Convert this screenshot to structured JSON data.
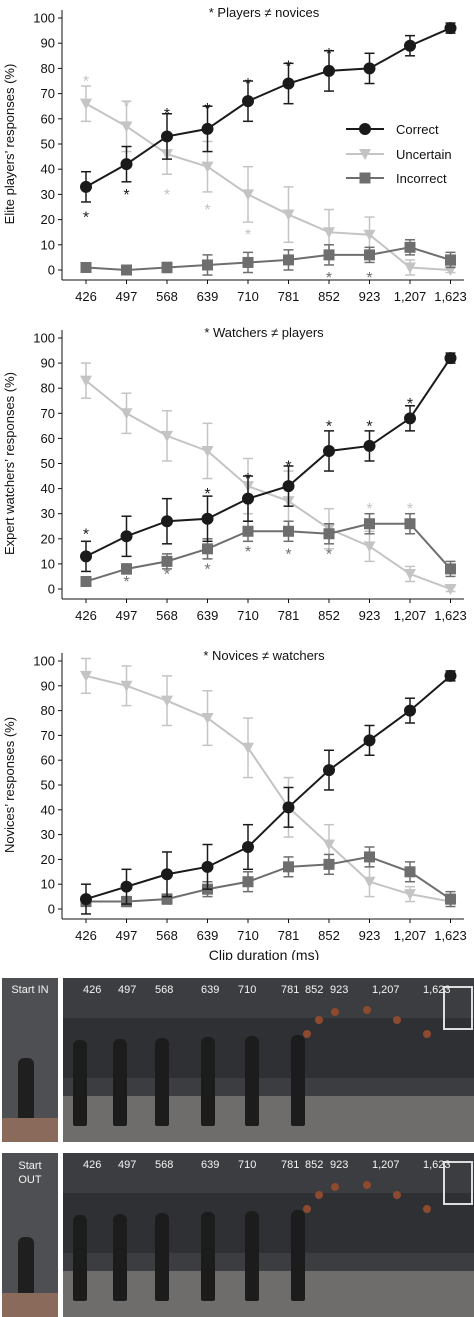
{
  "chart_data": [
    {
      "type": "line",
      "title": "* Players ≠ novices",
      "ylabel": "Elite players’ responses (%)",
      "xlabel": "",
      "categories": [
        "426",
        "497",
        "568",
        "639",
        "710",
        "781",
        "852",
        "923",
        "1,207",
        "1,623"
      ],
      "ylim": [
        0,
        100
      ],
      "yticks": [
        0,
        10,
        20,
        30,
        40,
        50,
        60,
        70,
        80,
        90,
        100
      ],
      "legend": {
        "position": "right",
        "entries": [
          "Correct",
          "Uncertain",
          "Incorrect"
        ]
      },
      "series": [
        {
          "name": "Correct",
          "color": "#1a1a1a",
          "marker": "circle",
          "values": [
            33,
            42,
            53,
            56,
            67,
            74,
            79,
            80,
            89,
            96
          ],
          "err": [
            6,
            7,
            9,
            9,
            8,
            8,
            8,
            6,
            4,
            2
          ]
        },
        {
          "name": "Uncertain",
          "color": "#c4c4c4",
          "marker": "triangle-down",
          "values": [
            66,
            57,
            46,
            41,
            30,
            22,
            15,
            14,
            1,
            0
          ],
          "err": [
            7,
            10,
            8,
            10,
            11,
            11,
            9,
            7,
            3,
            1
          ]
        },
        {
          "name": "Incorrect",
          "color": "#6e6e6e",
          "marker": "square",
          "values": [
            1,
            0,
            1,
            2,
            3,
            4,
            6,
            6,
            9,
            4
          ],
          "err": [
            1,
            1,
            2,
            4,
            4,
            4,
            4,
            3,
            3,
            3
          ]
        }
      ],
      "stars": [
        {
          "x": "426",
          "y": 22,
          "color": "#1a1a1a"
        },
        {
          "x": "497",
          "y": 31,
          "color": "#1a1a1a"
        },
        {
          "x": "568",
          "y": 63,
          "color": "#1a1a1a"
        },
        {
          "x": "639",
          "y": 65,
          "color": "#1a1a1a"
        },
        {
          "x": "710",
          "y": 75,
          "color": "#1a1a1a"
        },
        {
          "x": "781",
          "y": 82,
          "color": "#1a1a1a"
        },
        {
          "x": "852",
          "y": 87,
          "color": "#1a1a1a"
        },
        {
          "x": "426",
          "y": 76,
          "color": "#c4c4c4"
        },
        {
          "x": "497",
          "y": 66,
          "color": "#c4c4c4"
        },
        {
          "x": "568",
          "y": 31,
          "color": "#c4c4c4"
        },
        {
          "x": "639",
          "y": 25,
          "color": "#c4c4c4"
        },
        {
          "x": "710",
          "y": 15,
          "color": "#c4c4c4"
        },
        {
          "x": "852",
          "y": -2,
          "color": "#6e6e6e"
        },
        {
          "x": "923",
          "y": -2,
          "color": "#6e6e6e"
        }
      ]
    },
    {
      "type": "line",
      "title": "* Watchers ≠ players",
      "ylabel": "Expert watchers’ responses (%)",
      "xlabel": "",
      "categories": [
        "426",
        "497",
        "568",
        "639",
        "710",
        "781",
        "852",
        "923",
        "1,207",
        "1,623"
      ],
      "ylim": [
        0,
        100
      ],
      "yticks": [
        0,
        10,
        20,
        30,
        40,
        50,
        60,
        70,
        80,
        90,
        100
      ],
      "series": [
        {
          "name": "Correct",
          "color": "#1a1a1a",
          "marker": "circle",
          "values": [
            13,
            21,
            27,
            28,
            36,
            41,
            55,
            57,
            68,
            92
          ],
          "err": [
            6,
            8,
            9,
            9,
            9,
            8,
            8,
            6,
            5,
            2
          ]
        },
        {
          "name": "Uncertain",
          "color": "#c4c4c4",
          "marker": "triangle-down",
          "values": [
            83,
            70,
            61,
            55,
            41,
            35,
            24,
            17,
            6,
            0
          ],
          "err": [
            7,
            8,
            10,
            11,
            11,
            12,
            8,
            6,
            3,
            1
          ]
        },
        {
          "name": "Incorrect",
          "color": "#6e6e6e",
          "marker": "square",
          "values": [
            3,
            8,
            11,
            16,
            23,
            23,
            22,
            26,
            26,
            8
          ],
          "err": [
            1,
            2,
            3,
            4,
            4,
            4,
            4,
            4,
            4,
            3
          ]
        }
      ],
      "stars": [
        {
          "x": "426",
          "y": 23,
          "color": "#1a1a1a"
        },
        {
          "x": "639",
          "y": 39,
          "color": "#1a1a1a"
        },
        {
          "x": "710",
          "y": 45,
          "color": "#1a1a1a"
        },
        {
          "x": "781",
          "y": 50,
          "color": "#1a1a1a"
        },
        {
          "x": "852",
          "y": 66,
          "color": "#1a1a1a"
        },
        {
          "x": "923",
          "y": 66,
          "color": "#1a1a1a"
        },
        {
          "x": "1,207",
          "y": 75,
          "color": "#1a1a1a"
        },
        {
          "x": "923",
          "y": 33,
          "color": "#c4c4c4"
        },
        {
          "x": "1,207",
          "y": 33,
          "color": "#c4c4c4"
        },
        {
          "x": "497",
          "y": 4,
          "color": "#6e6e6e"
        },
        {
          "x": "568",
          "y": 7,
          "color": "#6e6e6e"
        },
        {
          "x": "639",
          "y": 9,
          "color": "#6e6e6e"
        },
        {
          "x": "710",
          "y": 16,
          "color": "#6e6e6e"
        },
        {
          "x": "781",
          "y": 15,
          "color": "#6e6e6e"
        },
        {
          "x": "852",
          "y": 15,
          "color": "#6e6e6e"
        }
      ]
    },
    {
      "type": "line",
      "title": "* Novices ≠ watchers",
      "ylabel": "Novices’ responses (%)",
      "xlabel": "Clip duration (ms)",
      "categories": [
        "426",
        "497",
        "568",
        "639",
        "710",
        "781",
        "852",
        "923",
        "1,207",
        "1,623"
      ],
      "ylim": [
        0,
        100
      ],
      "yticks": [
        0,
        10,
        20,
        30,
        40,
        50,
        60,
        70,
        80,
        90,
        100
      ],
      "series": [
        {
          "name": "Correct",
          "color": "#1a1a1a",
          "marker": "circle",
          "values": [
            4,
            9,
            14,
            17,
            25,
            41,
            56,
            68,
            80,
            94
          ],
          "err": [
            6,
            7,
            9,
            9,
            9,
            8,
            8,
            6,
            5,
            2
          ]
        },
        {
          "name": "Uncertain",
          "color": "#c4c4c4",
          "marker": "triangle-down",
          "values": [
            94,
            90,
            84,
            77,
            65,
            41,
            26,
            11,
            6,
            3
          ],
          "err": [
            7,
            8,
            10,
            11,
            12,
            12,
            8,
            6,
            3,
            1
          ]
        },
        {
          "name": "Incorrect",
          "color": "#6e6e6e",
          "marker": "square",
          "values": [
            3,
            3,
            4,
            8,
            11,
            17,
            18,
            21,
            15,
            4
          ],
          "err": [
            1,
            2,
            2,
            3,
            4,
            4,
            4,
            4,
            4,
            3
          ]
        }
      ],
      "stars": []
    }
  ],
  "photo_strips": [
    {
      "start_label": "Start IN",
      "frame_labels": [
        "426",
        "497",
        "568",
        "639",
        "710",
        "781",
        "852",
        "923",
        "1,207",
        "1,623"
      ]
    },
    {
      "start_label": "Start OUT",
      "frame_labels": [
        "426",
        "497",
        "568",
        "639",
        "710",
        "781",
        "852",
        "923",
        "1,207",
        "1,623"
      ]
    }
  ]
}
